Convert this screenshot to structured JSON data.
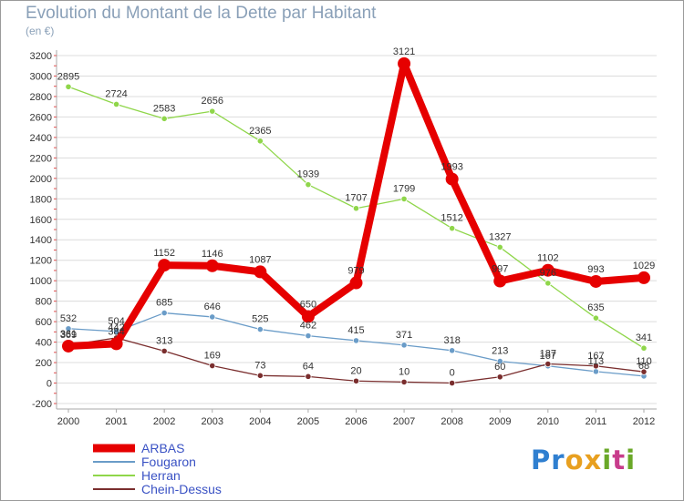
{
  "chart_data": {
    "type": "line",
    "title": "Evolution du Montant de la Dette par Habitant",
    "subtitle": "(en €)",
    "xlabel": "",
    "ylabel": "",
    "categories": [
      "2000",
      "2001",
      "2002",
      "2003",
      "2004",
      "2005",
      "2006",
      "2007",
      "2008",
      "2009",
      "2010",
      "2011",
      "2012"
    ],
    "ylim": [
      -200,
      3200
    ],
    "yticks": [
      -200,
      0,
      200,
      400,
      600,
      800,
      1000,
      1200,
      1400,
      1600,
      1800,
      2000,
      2200,
      2400,
      2600,
      2800,
      3000,
      3200
    ],
    "grid": "horizontal",
    "legend_placement": "bottom-left",
    "series": [
      {
        "name": "ARBAS",
        "color": "#e60000",
        "values": [
          361,
          384,
          1152,
          1146,
          1087,
          650,
          979,
          3121,
          1993,
          997,
          1102,
          993,
          1029
        ]
      },
      {
        "name": "Fougaron",
        "color": "#6a9cc8",
        "values": [
          532,
          504,
          685,
          646,
          525,
          462,
          415,
          371,
          318,
          213,
          167,
          113,
          68
        ]
      },
      {
        "name": "Herran",
        "color": "#8fd64a",
        "values": [
          2895,
          2724,
          2583,
          2656,
          2365,
          1939,
          1707,
          1799,
          1512,
          1327,
          976,
          635,
          341
        ]
      },
      {
        "name": "Chein-Dessus",
        "color": "#7a2e2e",
        "values": [
          369,
          442,
          313,
          169,
          73,
          64,
          20,
          10,
          0,
          60,
          187,
          167,
          110
        ]
      }
    ]
  },
  "brand": {
    "name": "Proxiti",
    "letters": [
      "P",
      "r",
      "o",
      "x",
      "i",
      "t",
      "i"
    ],
    "colors": [
      "#2f7fd0",
      "#2f7fd0",
      "#e8a020",
      "#e8a020",
      "#6aa828",
      "#c83c8c",
      "#6aa828"
    ]
  }
}
